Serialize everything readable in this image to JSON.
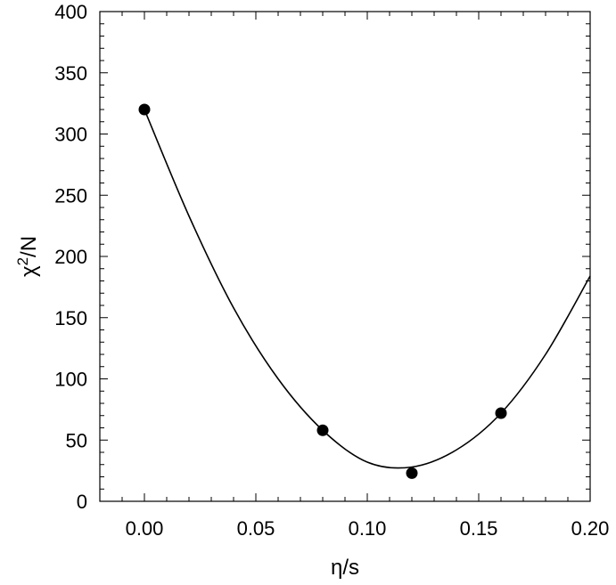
{
  "chart_data": {
    "type": "scatter",
    "xlabel": "η/s",
    "ylabel": {
      "base": "χ",
      "sup": "2",
      "rest": "/N"
    },
    "xlim": [
      -0.02,
      0.2
    ],
    "ylim": [
      0,
      400
    ],
    "xticks": [
      0.0,
      0.05,
      0.1,
      0.15,
      0.2
    ],
    "xtick_labels": [
      "0.00",
      "0.05",
      "0.10",
      "0.15",
      "0.20"
    ],
    "yticks": [
      0,
      50,
      100,
      150,
      200,
      250,
      300,
      350,
      400
    ],
    "ytick_labels": [
      "0",
      "50",
      "100",
      "150",
      "200",
      "250",
      "300",
      "350",
      "400"
    ],
    "grid": false,
    "series": [
      {
        "kind": "points",
        "x": [
          0.0,
          0.08,
          0.12,
          0.16
        ],
        "y": [
          320,
          58,
          23,
          72
        ]
      },
      {
        "kind": "fit-curve",
        "x": [
          0.0,
          0.02,
          0.04,
          0.06,
          0.08,
          0.1,
          0.12,
          0.14,
          0.16,
          0.18,
          0.2
        ],
        "y": [
          320,
          233,
          158,
          100,
          58,
          32,
          28,
          42,
          72,
          120,
          184
        ]
      }
    ],
    "colors": {
      "points": "#000000",
      "curve": "#000000",
      "axes": "#000000"
    }
  }
}
